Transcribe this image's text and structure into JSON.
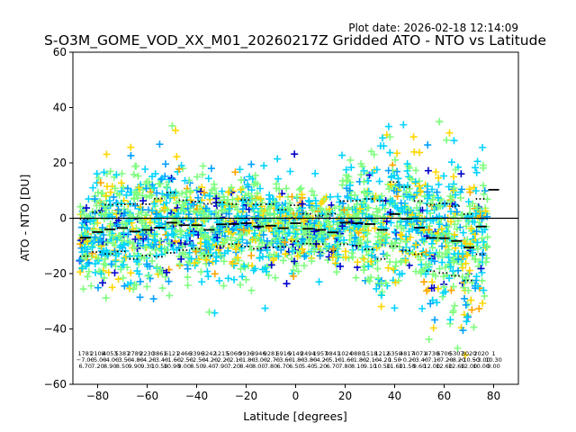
{
  "chart_data": {
    "type": "scatter",
    "title": "S-O3M_GOME_VOD_XX_M01_20260217Z Gridded ATO - NTO vs Latitude",
    "plot_date": "Plot date: 2026-02-18 12:14:09",
    "xlabel": "Latitude [degrees]",
    "ylabel": "ATO - NTO [DU]",
    "xlim": [
      -90,
      90
    ],
    "ylim": [
      -60,
      60
    ],
    "x_ticks": [
      -80,
      -60,
      -40,
      -20,
      0,
      20,
      40,
      60,
      80
    ],
    "y_ticks": [
      -60,
      -40,
      -20,
      0,
      20,
      40,
      60
    ],
    "x_tick_labels": [
      "−80",
      "−60",
      "−40",
      "−20",
      "0",
      "20",
      "40",
      "60",
      "80"
    ],
    "y_tick_labels": [
      "−60",
      "−40",
      "−20",
      "0",
      "20",
      "40",
      "60"
    ],
    "zero_line": 0,
    "marker_colors": [
      "#7fff7f",
      "#00d4ff",
      "#ffd700",
      "#00a0ff",
      "#0000cd",
      "#ffa500"
    ],
    "bins": [
      {
        "lat": -85,
        "mean": -7.0,
        "std": 6.7,
        "count": "1781"
      },
      {
        "lat": -80,
        "mean": -5.0,
        "std": 7.2,
        "count": "2108"
      },
      {
        "lat": -75,
        "mean": -4.0,
        "std": 8.9,
        "count": "4053"
      },
      {
        "lat": -70,
        "mean": -3.5,
        "std": 8.5,
        "count": "5387"
      },
      {
        "lat": -65,
        "mean": -4.8,
        "std": 9.9,
        "count": "2789"
      },
      {
        "lat": -60,
        "mean": -4.2,
        "std": 9.3,
        "count": "2230"
      },
      {
        "lat": -55,
        "mean": -3.4,
        "std": 10.5,
        "count": "3861"
      },
      {
        "lat": -50,
        "mean": -1.6,
        "std": 10.9,
        "count": "6121"
      },
      {
        "lat": -45,
        "mean": -2.5,
        "std": 9.0,
        "count": "2466"
      },
      {
        "lat": -40,
        "mean": -2.5,
        "std": 8.5,
        "count": "3396"
      },
      {
        "lat": -35,
        "mean": -4.2,
        "std": 9.4,
        "count": "3242"
      },
      {
        "lat": -30,
        "mean": -2.2,
        "std": 7.9,
        "count": "1215"
      },
      {
        "lat": -25,
        "mean": -2.1,
        "std": 7.2,
        "count": "5060"
      },
      {
        "lat": -20,
        "mean": -1.8,
        "std": 8.4,
        "count": "9936"
      },
      {
        "lat": -15,
        "mean": -3.0,
        "std": 8.0,
        "count": "3946"
      },
      {
        "lat": -10,
        "mean": -2.7,
        "std": 7.8,
        "count": "9281"
      },
      {
        "lat": -5,
        "mean": -3.6,
        "std": 6.7,
        "count": "6916"
      },
      {
        "lat": 0,
        "mean": -1.8,
        "std": 6.5,
        "count": "9149"
      },
      {
        "lat": 5,
        "mean": -3.8,
        "std": 5.4,
        "count": "2494"
      },
      {
        "lat": 10,
        "mean": -4.2,
        "std": 5.2,
        "count": "1957"
      },
      {
        "lat": 15,
        "mean": -5.1,
        "std": 6.7,
        "count": "9841"
      },
      {
        "lat": 20,
        "mean": -1.6,
        "std": 7.8,
        "count": "1024"
      },
      {
        "lat": 25,
        "mean": -1.8,
        "std": 8.1,
        "count": "0880"
      },
      {
        "lat": 30,
        "mean": -2.1,
        "std": 9.1,
        "count": "1518"
      },
      {
        "lat": 35,
        "mean": -4.2,
        "std": 10.5,
        "count": "1212"
      },
      {
        "lat": 40,
        "mean": 1.5,
        "std": 11.6,
        "count": "6350"
      },
      {
        "lat": 45,
        "mean": -0.2,
        "std": 11.5,
        "count": "4817"
      },
      {
        "lat": 50,
        "mean": -3.4,
        "std": 9.6,
        "count": "4071"
      },
      {
        "lat": 55,
        "mean": -7.1,
        "std": 12.0,
        "count": "4730"
      },
      {
        "lat": 60,
        "mean": -7.2,
        "std": 12.6,
        "count": "6706"
      },
      {
        "lat": 65,
        "mean": -8.2,
        "std": 12.6,
        "count": "5307"
      },
      {
        "lat": 70,
        "mean": -10.5,
        "std": 12.0,
        "count": "3020"
      },
      {
        "lat": 75,
        "mean": -3.0,
        "std": 10.0,
        "count": "2020"
      },
      {
        "lat": 80,
        "mean": 10.3,
        "std": 0.0,
        "count": "1"
      }
    ]
  }
}
